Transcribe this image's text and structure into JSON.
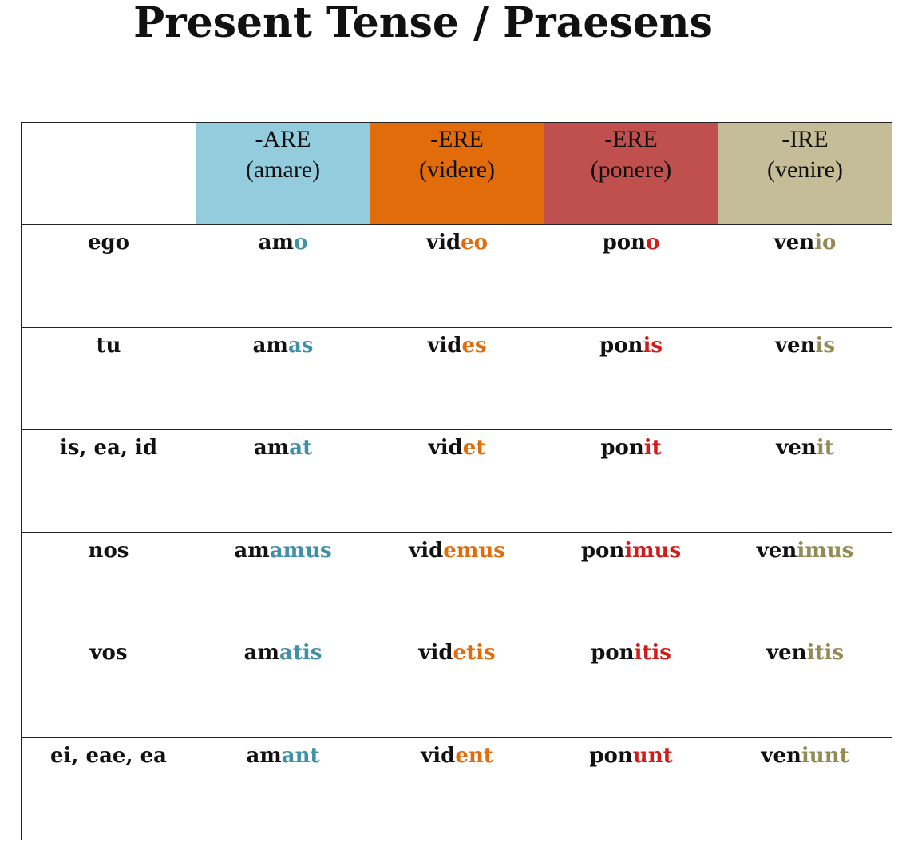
{
  "title": "Present Tense / Praesens",
  "headers": [
    {
      "ending": "-ARE",
      "verb": "(amare)",
      "bg": "#93cddd",
      "ending_color": "#3f8fa6"
    },
    {
      "ending": "-ERE",
      "verb": "(videre)",
      "bg": "#e36c0a",
      "ending_color": "#e36c0a"
    },
    {
      "ending": "-ERE",
      "verb": "(ponere)",
      "bg": "#c0504d",
      "ending_color": "#d21b1b"
    },
    {
      "ending": "-IRE",
      "verb": "(venire)",
      "bg": "#c4bd97",
      "ending_color": "#948a54"
    }
  ],
  "rows": [
    {
      "pronoun": "ego",
      "forms": [
        {
          "stem": "am",
          "ending": "o"
        },
        {
          "stem": "vid",
          "ending": "eo"
        },
        {
          "stem": "pon",
          "ending": "o"
        },
        {
          "stem": "ven",
          "ending": "io"
        }
      ]
    },
    {
      "pronoun": "tu",
      "forms": [
        {
          "stem": "am",
          "ending": "as"
        },
        {
          "stem": "vid",
          "ending": "es"
        },
        {
          "stem": "pon",
          "ending": "is"
        },
        {
          "stem": "ven",
          "ending": "is"
        }
      ]
    },
    {
      "pronoun": "is, ea, id",
      "forms": [
        {
          "stem": "am",
          "ending": "at"
        },
        {
          "stem": "vid",
          "ending": "et"
        },
        {
          "stem": "pon",
          "ending": "it"
        },
        {
          "stem": "ven",
          "ending": "it"
        }
      ]
    },
    {
      "pronoun": "nos",
      "forms": [
        {
          "stem": "am",
          "ending": "amus"
        },
        {
          "stem": "vid",
          "ending": "emus"
        },
        {
          "stem": "pon",
          "ending": "imus"
        },
        {
          "stem": "ven",
          "ending": "imus"
        }
      ]
    },
    {
      "pronoun": "vos",
      "forms": [
        {
          "stem": "am",
          "ending": "atis"
        },
        {
          "stem": "vid",
          "ending": "etis"
        },
        {
          "stem": "pon",
          "ending": "itis"
        },
        {
          "stem": "ven",
          "ending": "itis"
        }
      ]
    },
    {
      "pronoun": "ei, eae, ea",
      "forms": [
        {
          "stem": "am",
          "ending": "ant"
        },
        {
          "stem": "vid",
          "ending": "ent"
        },
        {
          "stem": "pon",
          "ending": "unt"
        },
        {
          "stem": "ven",
          "ending": "iunt"
        }
      ]
    }
  ]
}
